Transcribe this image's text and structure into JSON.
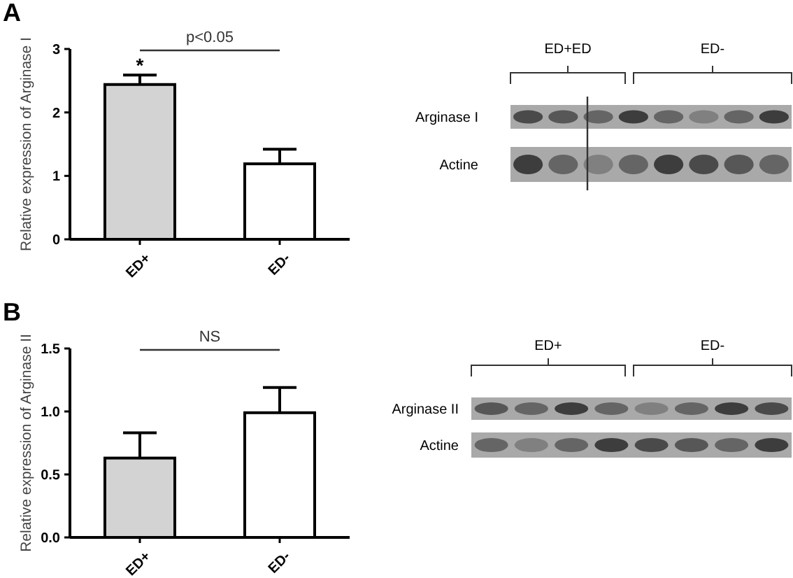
{
  "chart_data": [
    {
      "type": "bar",
      "title": "A",
      "ylabel": "Relative expression of Arginase I",
      "categories": [
        "ED+",
        "ED-"
      ],
      "values": [
        2.44,
        1.19
      ],
      "errors": [
        0.15,
        0.23
      ],
      "colors": [
        "#d3d3d3",
        "#ffffff"
      ],
      "ylim": [
        0,
        3
      ],
      "yticks": [
        0,
        1,
        2,
        3
      ],
      "grid": false,
      "annotations": [
        "p<0.05",
        {
          "text": "*",
          "x": "ED+",
          "y": 2.59
        },
        "ED+ED",
        "ED-",
        "Arginase I",
        "Actine"
      ]
    },
    {
      "type": "bar",
      "title": "B",
      "ylabel": "Relative expression of Arginase II",
      "categories": [
        "ED+",
        "ED-"
      ],
      "values": [
        0.63,
        0.99
      ],
      "errors": [
        0.2,
        0.2
      ],
      "colors": [
        "#d3d3d3",
        "#ffffff"
      ],
      "ylim": [
        0,
        1.5
      ],
      "yticks": [
        {
          "value": 0,
          "label": "0.0"
        },
        {
          "value": 0.5,
          "label": "0.5"
        },
        {
          "value": 1,
          "label": "1.0"
        },
        {
          "value": 1.5,
          "label": "1.5"
        }
      ],
      "grid": false,
      "annotations": [
        "NS",
        "ED+",
        "ED-",
        "Arginase II",
        "Actine"
      ]
    }
  ]
}
